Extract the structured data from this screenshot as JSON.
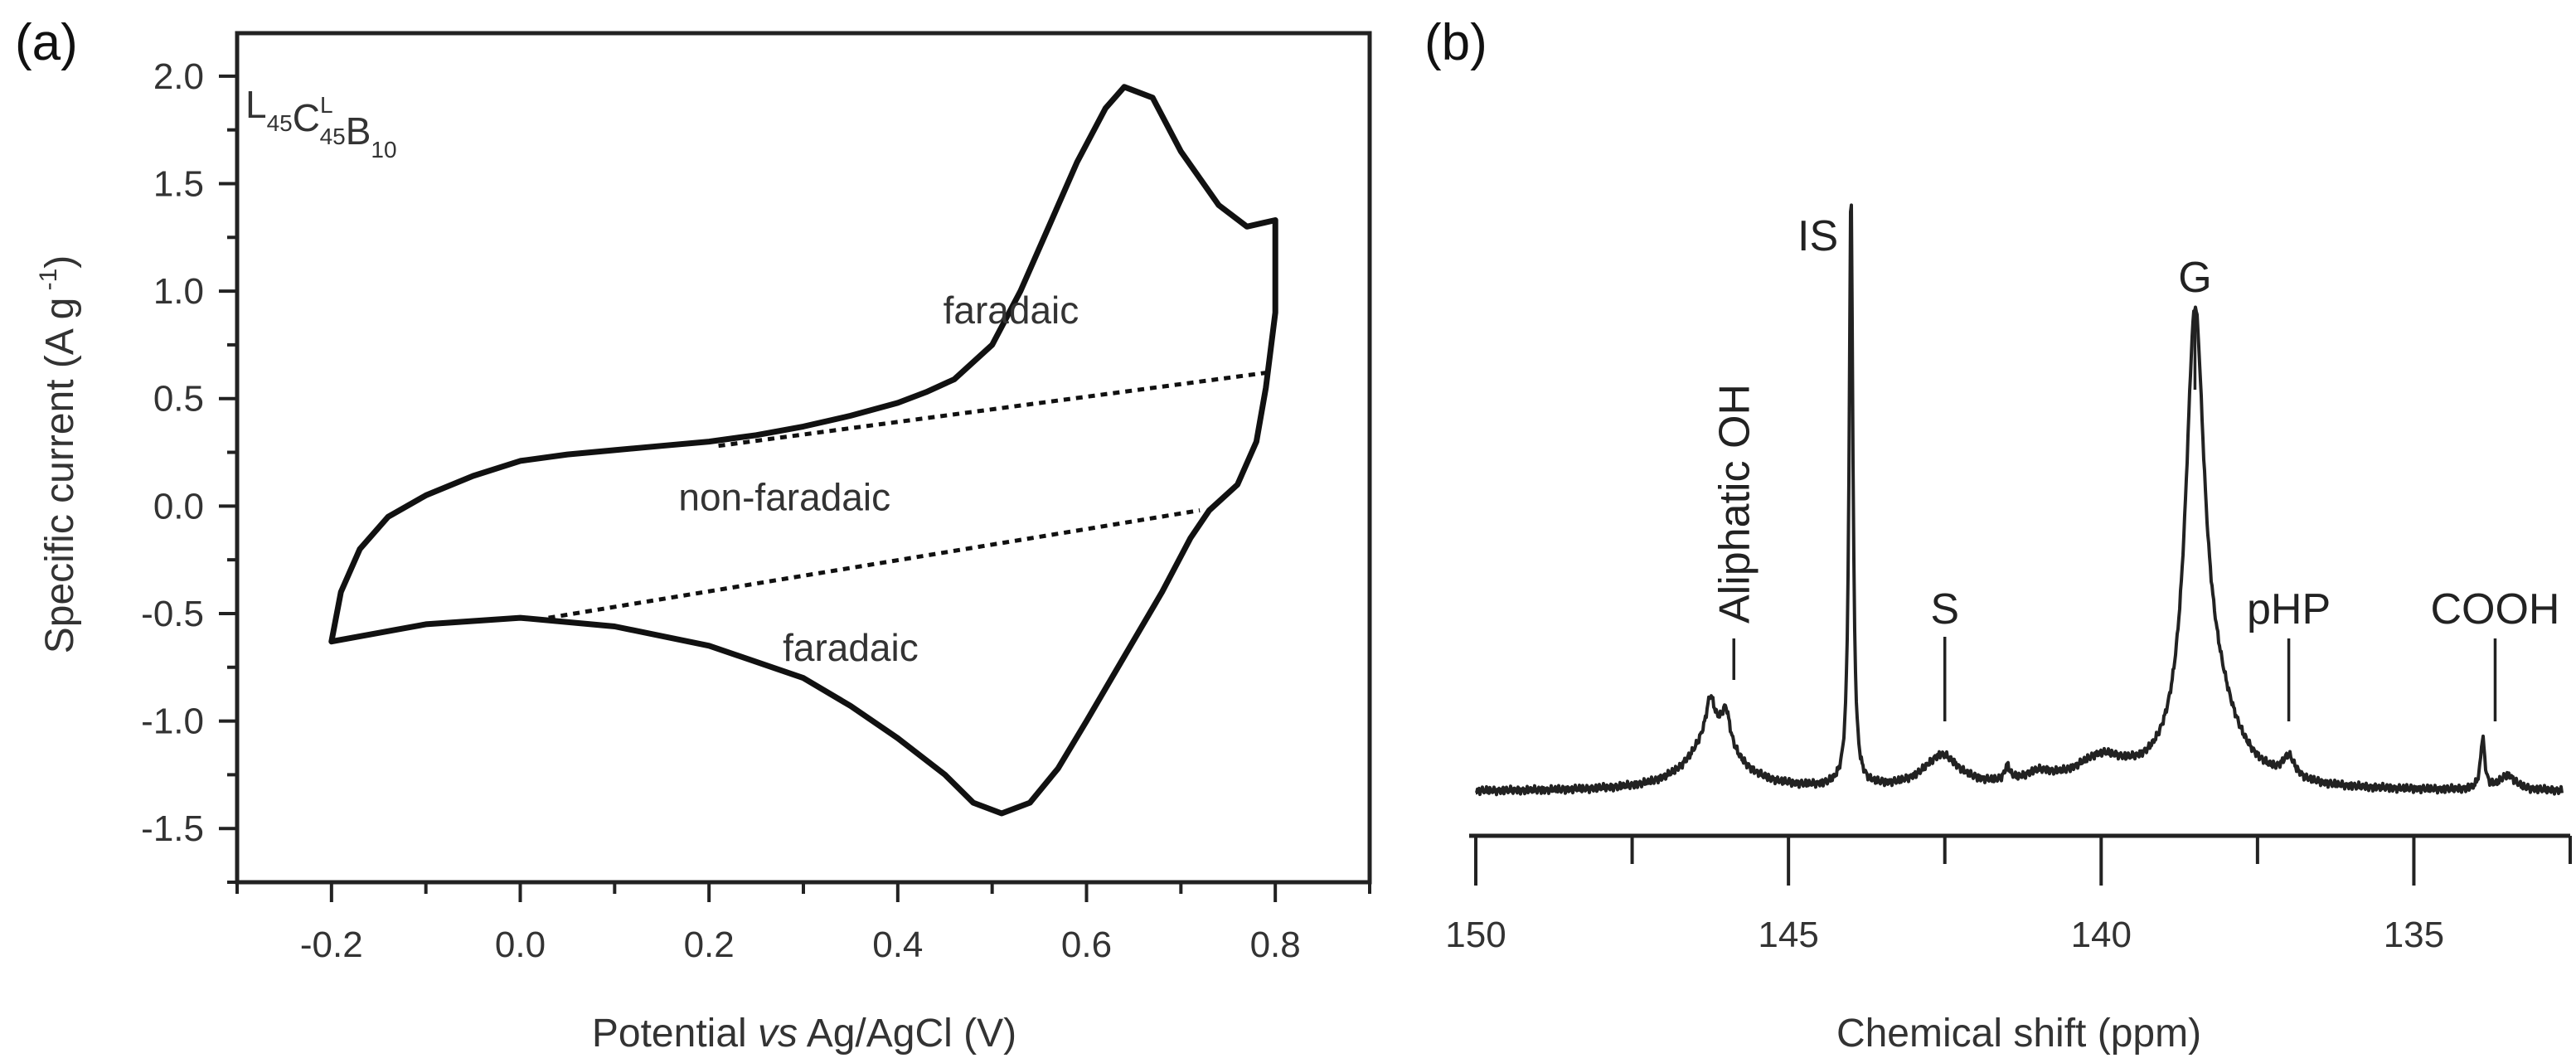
{
  "chart_data": [
    {
      "panel": "(a)",
      "type": "line",
      "sample_label": {
        "base": "L45C45B10",
        "parts": [
          {
            "t": "L",
            "s": "45"
          },
          {
            "t": "C",
            "sup": "L",
            "s": "45"
          },
          {
            "t": "B",
            "s": "10"
          }
        ]
      },
      "xlabel": {
        "pre": "Potential ",
        "italic": "vs",
        "post": " Ag/AgCl (V)"
      },
      "ylabel": {
        "pre": "Specific current (A g",
        "sup": " -1",
        "post": ")"
      },
      "xlim": [
        -0.3,
        0.9
      ],
      "ylim": [
        -1.75,
        2.2
      ],
      "xticks": [
        -0.2,
        0.0,
        0.2,
        0.4,
        0.6,
        0.8
      ],
      "xtick_labels": [
        "-0.2",
        "0.0",
        "0.2",
        "0.4",
        "0.6",
        "0.8"
      ],
      "yticks": [
        2.0,
        1.5,
        1.0,
        0.5,
        0.0,
        -0.5,
        -1.0,
        -1.5
      ],
      "ytick_labels": [
        "2.0",
        "1.5",
        "1.0",
        "0.5",
        "0.0",
        "-0.5",
        "-1.0",
        "-1.5"
      ],
      "annotations": [
        {
          "text": "faradaic",
          "x": 0.52,
          "y": 0.85
        },
        {
          "text": "non-faradaic",
          "x": 0.28,
          "y": -0.02
        },
        {
          "text": "faradaic",
          "x": 0.35,
          "y": -0.72
        }
      ],
      "series": [
        {
          "name": "CV curve",
          "x": [
            -0.2,
            -0.19,
            -0.17,
            -0.14,
            -0.1,
            -0.05,
            0.0,
            0.05,
            0.1,
            0.15,
            0.2,
            0.25,
            0.3,
            0.35,
            0.4,
            0.43,
            0.46,
            0.5,
            0.53,
            0.56,
            0.59,
            0.62,
            0.64,
            0.67,
            0.7,
            0.74,
            0.77,
            0.8,
            0.8,
            0.79,
            0.78,
            0.76,
            0.73,
            0.71,
            0.68,
            0.64,
            0.6,
            0.57,
            0.54,
            0.51,
            0.48,
            0.45,
            0.4,
            0.35,
            0.3,
            0.2,
            0.1,
            0.0,
            -0.1,
            -0.2
          ],
          "y": [
            -0.63,
            -0.4,
            -0.2,
            -0.05,
            0.05,
            0.14,
            0.21,
            0.24,
            0.26,
            0.28,
            0.3,
            0.33,
            0.37,
            0.42,
            0.48,
            0.53,
            0.59,
            0.75,
            1.0,
            1.3,
            1.6,
            1.85,
            1.95,
            1.9,
            1.65,
            1.4,
            1.3,
            1.33,
            0.9,
            0.55,
            0.3,
            0.1,
            -0.02,
            -0.15,
            -0.4,
            -0.7,
            -1.0,
            -1.22,
            -1.38,
            -1.43,
            -1.38,
            -1.25,
            -1.08,
            -0.93,
            -0.8,
            -0.65,
            -0.56,
            -0.52,
            -0.55,
            -0.63
          ]
        },
        {
          "name": "upper baseline",
          "style": "dotted",
          "x": [
            0.21,
            0.79
          ],
          "y": [
            0.28,
            0.62
          ]
        },
        {
          "name": "lower baseline",
          "style": "dotted",
          "x": [
            0.03,
            0.72
          ],
          "y": [
            -0.52,
            -0.02
          ]
        }
      ]
    },
    {
      "panel": "(b)",
      "type": "line",
      "xlabel": "Chemical shift (ppm)",
      "ylabel": "",
      "xlim": [
        150,
        132.5
      ],
      "xaxis_reversed": true,
      "xticks": [
        150,
        145,
        140,
        135
      ],
      "xtick_labels": [
        "150",
        "145",
        "140",
        "135"
      ],
      "minor_xticks": [
        147.5,
        142.5,
        137.5,
        132.5
      ],
      "yrange": [
        0,
        1
      ],
      "peak_labels": [
        {
          "text": "Aliphatic OH",
          "x": 145.9,
          "rotated": true
        },
        {
          "text": "IS",
          "x": 144.0
        },
        {
          "text": "S",
          "x": 142.5
        },
        {
          "text": "G",
          "x": 138.5
        },
        {
          "text": "pHP",
          "x": 137.0
        },
        {
          "text": "COOH",
          "x": 133.7
        }
      ],
      "series": [
        {
          "name": "31P NMR spectrum",
          "peaks": [
            {
              "center": 146.2,
              "height": 0.095,
              "width": 0.45
            },
            {
              "center": 146.25,
              "height": 0.06,
              "width": 0.08
            },
            {
              "center": 146.0,
              "height": 0.055,
              "width": 0.08
            },
            {
              "center": 144.0,
              "height": 1.0,
              "width": 0.035
            },
            {
              "center": 142.55,
              "height": 0.055,
              "width": 0.35
            },
            {
              "center": 141.5,
              "height": 0.025,
              "width": 0.05
            },
            {
              "center": 141.0,
              "height": 0.018,
              "width": 0.3
            },
            {
              "center": 140.0,
              "height": 0.045,
              "width": 0.5
            },
            {
              "center": 138.5,
              "height": 0.72,
              "width": 0.18
            },
            {
              "center": 138.2,
              "height": 0.12,
              "width": 0.45
            },
            {
              "center": 137.0,
              "height": 0.035,
              "width": 0.12
            },
            {
              "center": 133.9,
              "height": 0.085,
              "width": 0.04
            },
            {
              "center": 133.5,
              "height": 0.025,
              "width": 0.15
            }
          ]
        }
      ]
    }
  ]
}
